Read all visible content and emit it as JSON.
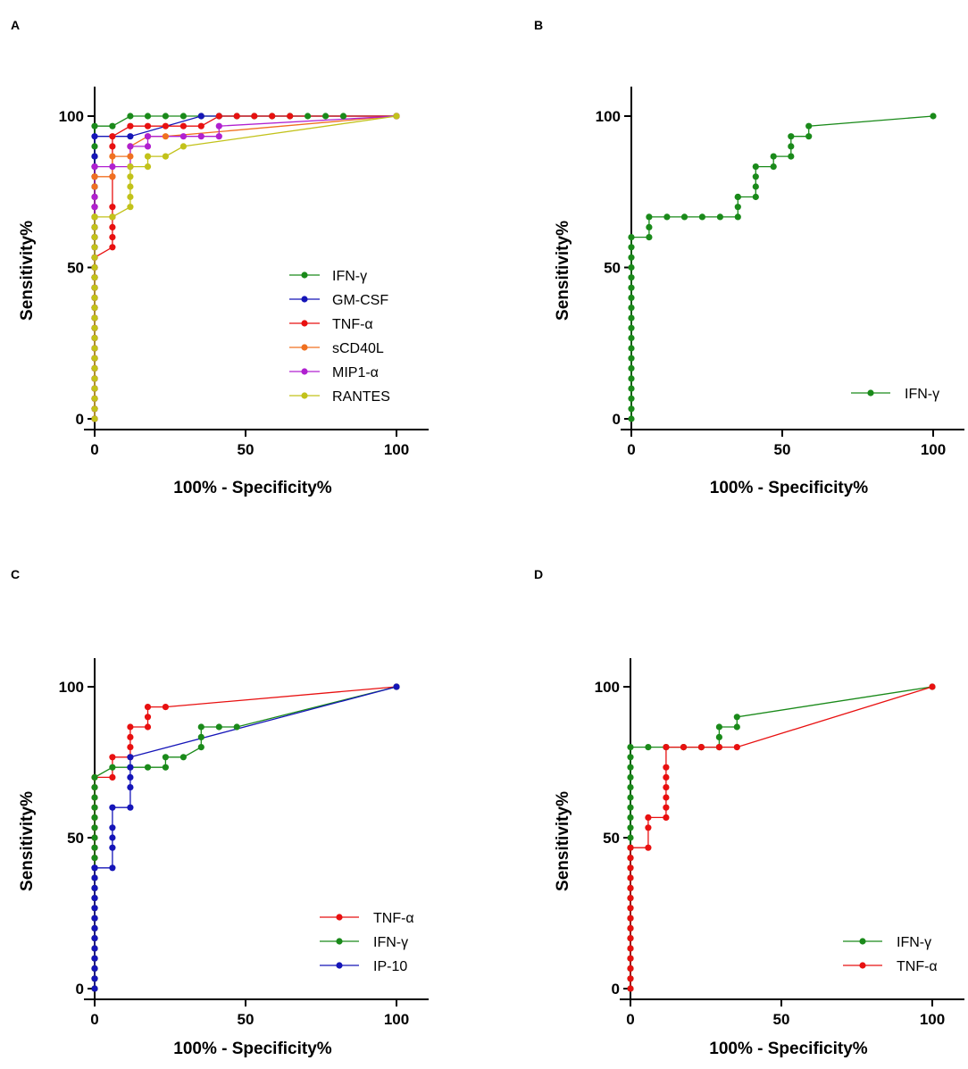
{
  "chart_data": [
    {
      "panel": "A",
      "type": "line",
      "xlabel": "100% - Specificity%",
      "ylabel": "Sensitivity%",
      "xlim": [
        0,
        110
      ],
      "ylim": [
        0,
        110
      ],
      "xticks": [
        "0",
        "50",
        "100"
      ],
      "yticks": [
        "0",
        "50",
        "100"
      ],
      "legend_position": "bottom-right",
      "series": [
        {
          "name": "IFN-γ",
          "color": "#1a8a1a",
          "x": [
            0,
            0,
            0,
            0,
            0,
            0,
            0,
            0,
            0,
            0,
            0,
            0,
            0,
            0,
            0,
            0,
            0,
            0,
            0,
            0,
            0,
            0,
            0,
            0,
            0,
            0,
            0,
            0,
            0,
            5.9,
            11.8,
            17.6,
            23.5,
            29.4,
            35.3,
            41.2,
            47.1,
            52.9,
            58.8,
            64.7,
            70.6,
            76.5,
            82.4,
            100
          ],
          "y": [
            0,
            3.3,
            6.7,
            10,
            13.3,
            16.7,
            20,
            23.3,
            26.7,
            30,
            33.3,
            36.7,
            40,
            43.3,
            46.7,
            50,
            53.3,
            56.7,
            60,
            63.3,
            66.7,
            70,
            73.3,
            76.7,
            80,
            83.3,
            86.7,
            90,
            96.7,
            96.7,
            100,
            100,
            100,
            100,
            100,
            100,
            100,
            100,
            100,
            100,
            100,
            100,
            100,
            100
          ]
        },
        {
          "name": "GM-CSF",
          "color": "#1515b8",
          "x": [
            0,
            0,
            0,
            0,
            0,
            0,
            0,
            0,
            0,
            0,
            0,
            0,
            0,
            0,
            0,
            0,
            0,
            0,
            0,
            0,
            0,
            0,
            0,
            0,
            0,
            0,
            0,
            0,
            11.8,
            35.3,
            41.2,
            100
          ],
          "y": [
            0,
            3.3,
            6.7,
            10,
            13.3,
            16.7,
            20,
            23.3,
            26.7,
            30,
            33.3,
            36.7,
            40,
            43.3,
            46.7,
            50,
            53.3,
            56.7,
            60,
            63.3,
            66.7,
            70,
            73.3,
            76.7,
            80,
            83.3,
            86.7,
            93.3,
            93.3,
            100,
            100,
            100
          ]
        },
        {
          "name": "TNF-α",
          "color": "#e81010",
          "x": [
            0,
            0,
            0,
            0,
            0,
            0,
            0,
            0,
            0,
            0,
            0,
            0,
            0,
            0,
            0,
            0,
            0,
            5.9,
            5.9,
            5.9,
            5.9,
            5.9,
            5.9,
            5.9,
            5.9,
            11.8,
            17.6,
            23.5,
            29.4,
            35.3,
            41.2,
            47.1,
            52.9,
            58.8,
            64.7,
            100
          ],
          "y": [
            0,
            3.3,
            6.7,
            10,
            13.3,
            16.7,
            20,
            23.3,
            26.7,
            30,
            33.3,
            36.7,
            40,
            43.3,
            46.7,
            50,
            53.3,
            56.7,
            60,
            63.3,
            66.7,
            70,
            80,
            90,
            93.3,
            96.7,
            96.7,
            96.7,
            96.7,
            96.7,
            100,
            100,
            100,
            100,
            100,
            100
          ]
        },
        {
          "name": "sCD40L",
          "color": "#f07020",
          "x": [
            0,
            0,
            0,
            0,
            0,
            0,
            0,
            0,
            0,
            0,
            0,
            0,
            0,
            0,
            0,
            0,
            0,
            0,
            0,
            0,
            0,
            0,
            0,
            0,
            0,
            0,
            5.9,
            5.9,
            11.8,
            11.8,
            17.6,
            23.5,
            100
          ],
          "y": [
            0,
            3.3,
            6.7,
            10,
            13.3,
            16.7,
            20,
            23.3,
            26.7,
            30,
            33.3,
            36.7,
            40,
            43.3,
            46.7,
            50,
            53.3,
            56.7,
            60,
            63.3,
            66.7,
            70,
            73.3,
            76.7,
            80,
            80,
            80,
            86.7,
            86.7,
            90,
            93.3,
            93.3,
            100
          ]
        },
        {
          "name": "MIP1-α",
          "color": "#b020d0",
          "x": [
            0,
            0,
            0,
            0,
            0,
            0,
            0,
            0,
            0,
            0,
            0,
            0,
            0,
            0,
            0,
            0,
            0,
            0,
            0,
            0,
            0,
            0,
            0,
            0,
            5.9,
            11.8,
            11.8,
            17.6,
            17.6,
            29.4,
            35.3,
            41.2,
            41.2,
            100
          ],
          "y": [
            0,
            3.3,
            6.7,
            10,
            13.3,
            16.7,
            20,
            23.3,
            26.7,
            30,
            33.3,
            36.7,
            40,
            43.3,
            46.7,
            50,
            53.3,
            56.7,
            60,
            63.3,
            66.7,
            70,
            73.3,
            83.3,
            83.3,
            83.3,
            90,
            90,
            93.3,
            93.3,
            93.3,
            93.3,
            96.7,
            100
          ]
        },
        {
          "name": "RANTES",
          "color": "#c2c21a",
          "x": [
            0,
            0,
            0,
            0,
            0,
            0,
            0,
            0,
            0,
            0,
            0,
            0,
            0,
            0,
            0,
            0,
            0,
            0,
            0,
            0,
            0,
            0,
            5.9,
            11.8,
            11.8,
            11.8,
            11.8,
            11.8,
            17.6,
            17.6,
            23.5,
            29.4,
            100
          ],
          "y": [
            0,
            3.3,
            6.7,
            10,
            13.3,
            16.7,
            20,
            23.3,
            26.7,
            30,
            33.3,
            36.7,
            40,
            43.3,
            46.7,
            50,
            53.3,
            56.7,
            60,
            63.3,
            66.7,
            66.7,
            66.7,
            70,
            73.3,
            76.7,
            80,
            83.3,
            83.3,
            86.7,
            86.7,
            90,
            100
          ]
        }
      ]
    },
    {
      "panel": "B",
      "type": "line",
      "xlabel": "100% - Specificity%",
      "ylabel": "Sensitivity%",
      "xlim": [
        0,
        110
      ],
      "ylim": [
        0,
        110
      ],
      "xticks": [
        "0",
        "50",
        "100"
      ],
      "yticks": [
        "0",
        "50",
        "100"
      ],
      "legend_position": "bottom-right",
      "series": [
        {
          "name": "IFN-γ",
          "color": "#1a8a1a",
          "x": [
            0,
            0,
            0,
            0,
            0,
            0,
            0,
            0,
            0,
            0,
            0,
            0,
            0,
            0,
            0,
            0,
            0,
            0,
            0,
            5.9,
            5.9,
            5.9,
            11.8,
            17.6,
            23.5,
            29.4,
            35.3,
            35.3,
            35.3,
            35.3,
            41.2,
            41.2,
            41.2,
            41.2,
            47.1,
            47.1,
            52.9,
            52.9,
            52.9,
            58.8,
            58.8,
            100
          ],
          "y": [
            0,
            3.3,
            6.7,
            10,
            13.3,
            16.7,
            20,
            23.3,
            26.7,
            30,
            33.3,
            36.7,
            40,
            43.3,
            46.7,
            50,
            53.3,
            56.7,
            60,
            60,
            63.3,
            66.7,
            66.7,
            66.7,
            66.7,
            66.7,
            66.7,
            70,
            73.3,
            73.3,
            73.3,
            76.7,
            80,
            83.3,
            83.3,
            86.7,
            86.7,
            90,
            93.3,
            93.3,
            96.7,
            100
          ]
        }
      ]
    },
    {
      "panel": "C",
      "type": "line",
      "xlabel": "100% - Specificity%",
      "ylabel": "Sensitivity%",
      "xlim": [
        0,
        110
      ],
      "ylim": [
        0,
        110
      ],
      "xticks": [
        "0",
        "50",
        "100"
      ],
      "yticks": [
        "0",
        "50",
        "100"
      ],
      "legend_position": "bottom-right",
      "series": [
        {
          "name": "TNF-α",
          "color": "#e81010",
          "x": [
            0,
            0,
            0,
            0,
            0,
            0,
            0,
            0,
            0,
            0,
            0,
            0,
            0,
            0,
            0,
            0,
            0,
            0,
            0,
            0,
            0,
            0,
            5.9,
            5.9,
            11.8,
            11.8,
            11.8,
            11.8,
            17.6,
            17.6,
            17.6,
            23.5,
            100
          ],
          "y": [
            0,
            3.3,
            6.7,
            10,
            13.3,
            16.7,
            20,
            23.3,
            26.7,
            30,
            33.3,
            36.7,
            40,
            43.3,
            46.7,
            50,
            53.3,
            56.7,
            60,
            63.3,
            66.7,
            70,
            70,
            76.7,
            76.7,
            80,
            83.3,
            86.7,
            86.7,
            90,
            93.3,
            93.3,
            100
          ]
        },
        {
          "name": "IFN-γ",
          "color": "#1a8a1a",
          "x": [
            0,
            0,
            0,
            0,
            0,
            0,
            0,
            0,
            0,
            0,
            0,
            0,
            0,
            0,
            0,
            0,
            0,
            0,
            0,
            0,
            0,
            0,
            5.9,
            11.8,
            17.6,
            23.5,
            23.5,
            29.4,
            35.3,
            35.3,
            35.3,
            41.2,
            47.1,
            100
          ],
          "y": [
            0,
            3.3,
            6.7,
            10,
            13.3,
            16.7,
            20,
            23.3,
            26.7,
            30,
            33.3,
            36.7,
            40,
            43.3,
            46.7,
            50,
            53.3,
            56.7,
            60,
            63.3,
            66.7,
            70,
            73.3,
            73.3,
            73.3,
            73.3,
            76.7,
            76.7,
            80,
            83.3,
            86.7,
            86.7,
            86.7,
            100
          ]
        },
        {
          "name": "IP-10",
          "color": "#1515b8",
          "x": [
            0,
            0,
            0,
            0,
            0,
            0,
            0,
            0,
            0,
            0,
            0,
            0,
            0,
            0,
            5.9,
            5.9,
            5.9,
            5.9,
            5.9,
            11.8,
            11.8,
            11.8,
            11.8,
            11.8,
            100
          ],
          "y": [
            0,
            3.3,
            6.7,
            10,
            13.3,
            16.7,
            20,
            23.3,
            26.7,
            30,
            33.3,
            36.7,
            40,
            40,
            40,
            46.7,
            50,
            53.3,
            60,
            60,
            66.7,
            70,
            73.3,
            76.7,
            100
          ]
        }
      ]
    },
    {
      "panel": "D",
      "type": "line",
      "xlabel": "100% - Specificity%",
      "ylabel": "Sensitivity%",
      "xlim": [
        0,
        110
      ],
      "ylim": [
        0,
        110
      ],
      "xticks": [
        "0",
        "50",
        "100"
      ],
      "yticks": [
        "0",
        "50",
        "100"
      ],
      "legend_position": "bottom-right",
      "series": [
        {
          "name": "IFN-γ",
          "color": "#1a8a1a",
          "x": [
            0,
            0,
            0,
            0,
            0,
            0,
            0,
            0,
            0,
            0,
            0,
            0,
            0,
            0,
            0,
            0,
            0,
            0,
            0,
            0,
            0,
            0,
            0,
            0,
            0,
            5.9,
            11.8,
            17.6,
            23.5,
            29.4,
            29.4,
            29.4,
            35.3,
            35.3,
            100
          ],
          "y": [
            0,
            3.3,
            6.7,
            10,
            13.3,
            16.7,
            20,
            23.3,
            26.7,
            30,
            33.3,
            36.7,
            40,
            43.3,
            46.7,
            50,
            53.3,
            56.7,
            60,
            63.3,
            66.7,
            70,
            73.3,
            76.7,
            80,
            80,
            80,
            80,
            80,
            80,
            83.3,
            86.7,
            86.7,
            90,
            100
          ]
        },
        {
          "name": "TNF-α",
          "color": "#e81010",
          "x": [
            0,
            0,
            0,
            0,
            0,
            0,
            0,
            0,
            0,
            0,
            0,
            0,
            0,
            0,
            0,
            5.9,
            5.9,
            5.9,
            11.8,
            11.8,
            11.8,
            11.8,
            11.8,
            11.8,
            11.8,
            17.6,
            23.5,
            29.4,
            35.3,
            100
          ],
          "y": [
            0,
            3.3,
            6.7,
            10,
            13.3,
            16.7,
            20,
            23.3,
            26.7,
            30,
            33.3,
            36.7,
            40,
            43.3,
            46.7,
            46.7,
            53.3,
            56.7,
            56.7,
            60,
            63.3,
            66.7,
            70,
            73.3,
            80,
            80,
            80,
            80,
            80,
            100
          ]
        }
      ]
    }
  ]
}
